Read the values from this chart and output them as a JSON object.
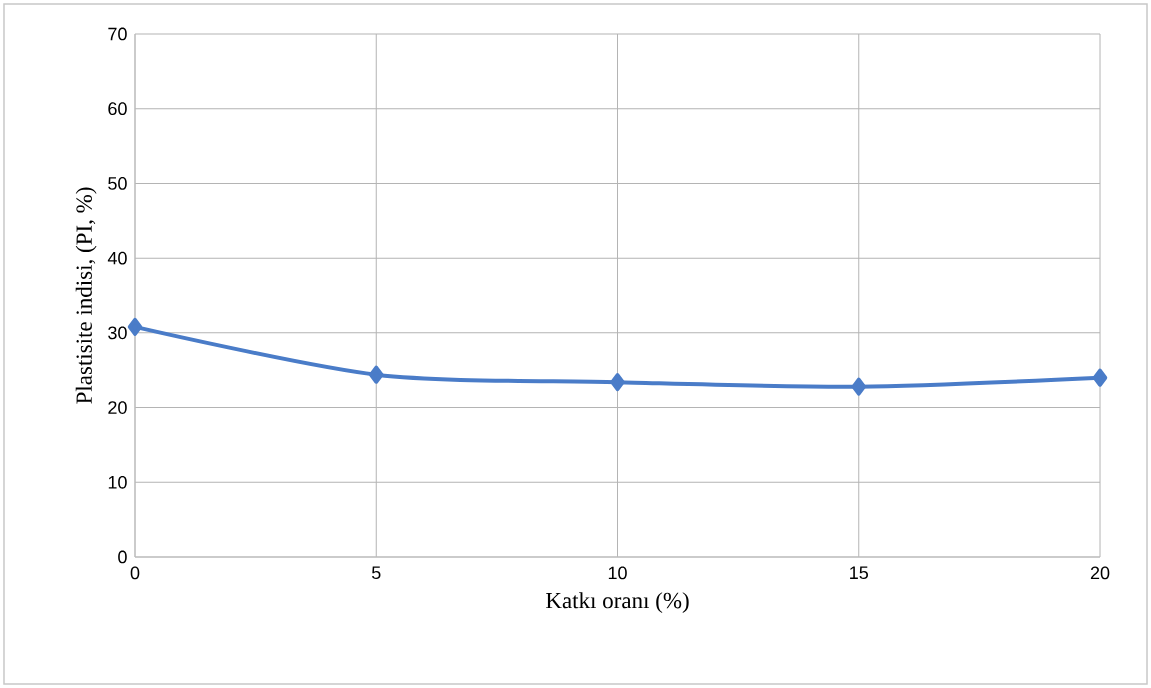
{
  "chart_data": {
    "type": "line",
    "xlabel": "Katkı oranı (%)",
    "ylabel": "Plastisite indisi, (PI, %)",
    "x": [
      0,
      5,
      10,
      15,
      20
    ],
    "series": [
      {
        "color": "#4a7cc8",
        "values": [
          30.8,
          24.4,
          23.4,
          22.8,
          24.0
        ]
      }
    ],
    "xlim": [
      0,
      20
    ],
    "xticks": [
      0,
      5,
      10,
      15,
      20
    ],
    "ylim": [
      0,
      70
    ],
    "yticks": [
      0,
      10,
      20,
      30,
      40,
      50,
      60,
      70
    ],
    "grid": true,
    "marker": "diamond",
    "line_style": "solid"
  }
}
